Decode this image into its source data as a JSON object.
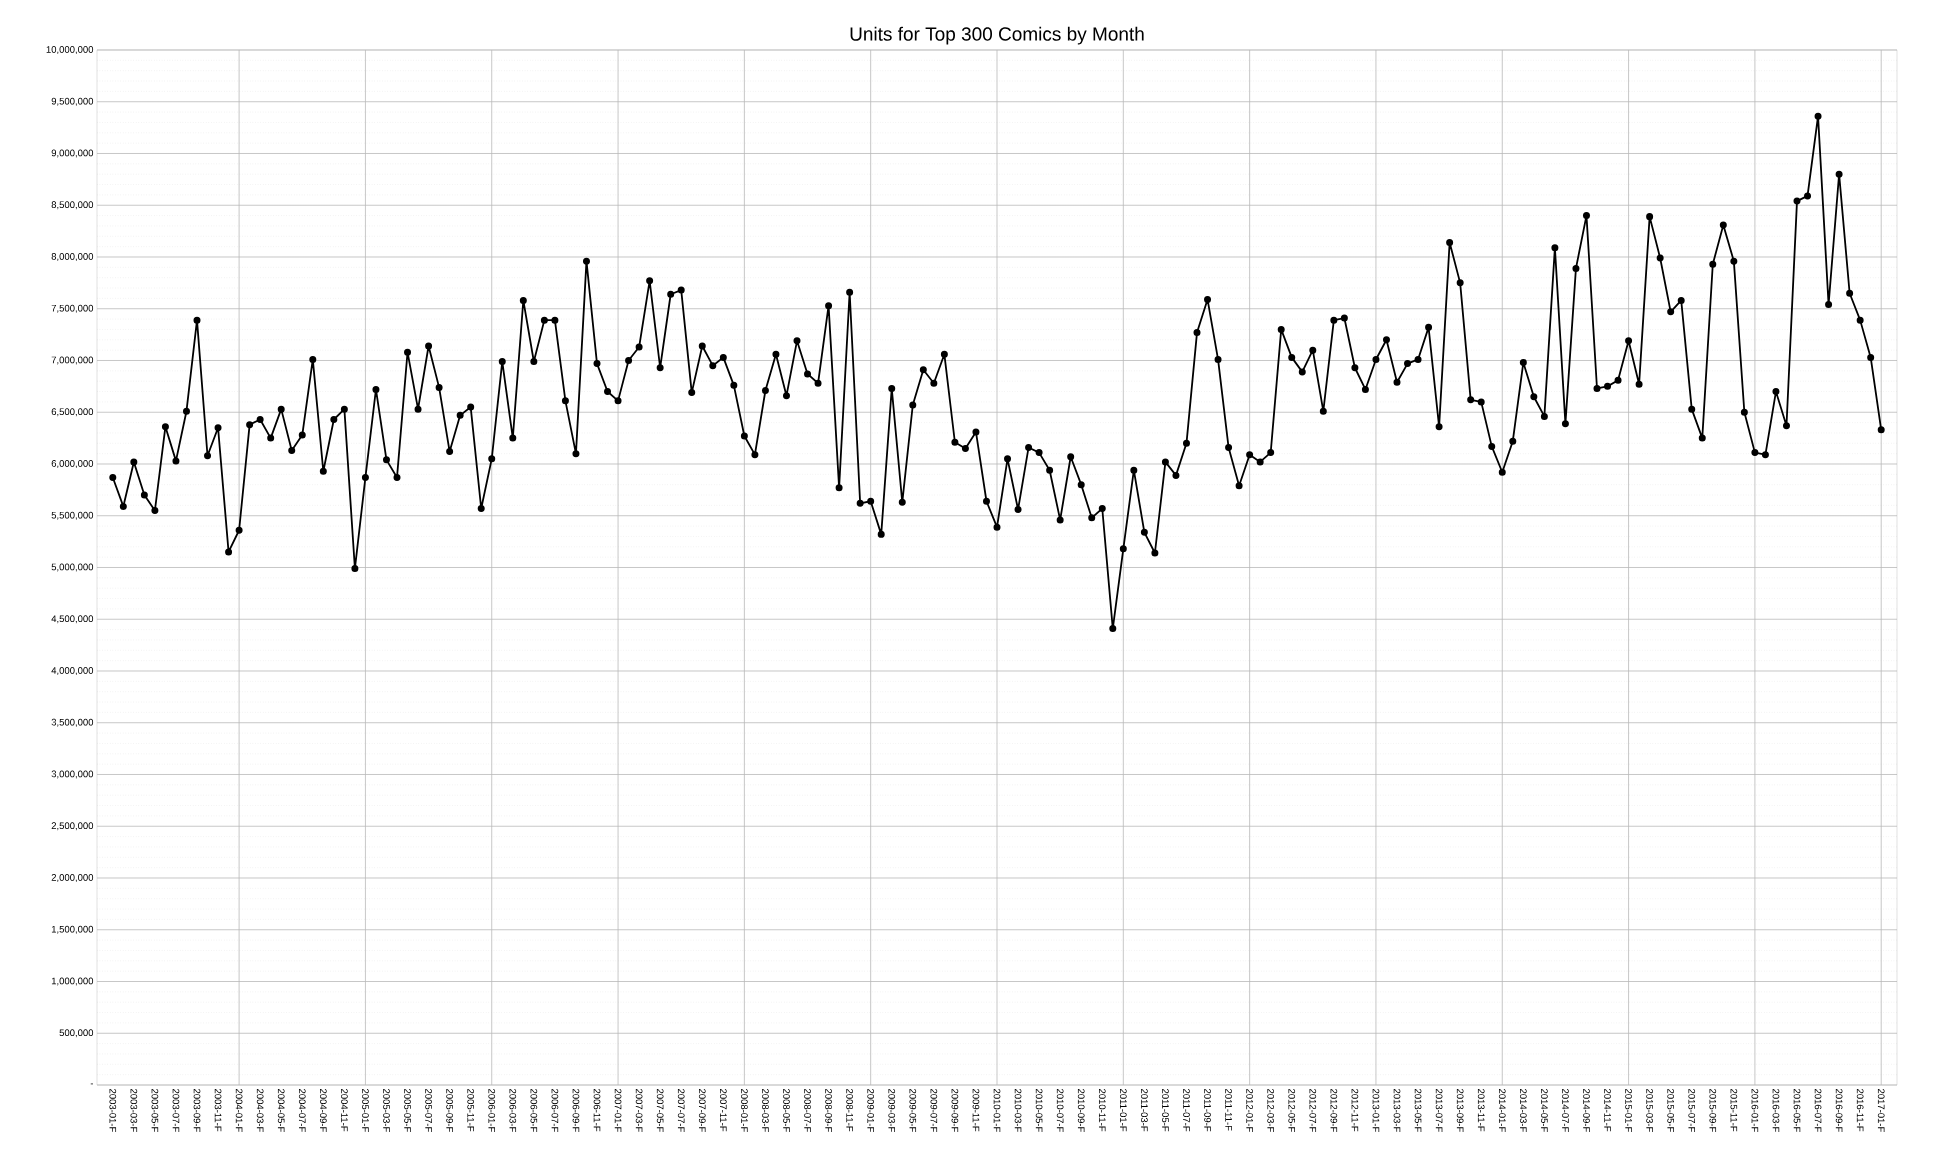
{
  "chart_data": {
    "type": "line",
    "title": "Units for Top 300 Comics by Month",
    "categories": [
      "2003-01-F",
      null,
      "2003-03-F",
      null,
      "2003-05-F",
      null,
      "2003-07-F",
      null,
      "2003-09-F",
      null,
      "2003-11-F",
      null,
      "2004-01-F",
      null,
      "2004-03-F",
      null,
      "2004-05-F",
      null,
      "2004-07-F",
      null,
      "2004-09-F",
      null,
      "2004-11-F",
      null,
      "2005-01-F",
      null,
      "2005-03-F",
      null,
      "2005-05-F",
      null,
      "2005-07-F",
      null,
      "2005-09-F",
      null,
      "2005-11-F",
      null,
      "2006-01-F",
      null,
      "2006-03-F",
      null,
      "2006-05-F",
      null,
      "2006-07-F",
      null,
      "2006-09-F",
      null,
      "2006-11-F",
      null,
      "2007-01-F",
      null,
      "2007-03-F",
      null,
      "2007-05-F",
      null,
      "2007-07-F",
      null,
      "2007-09-F",
      null,
      "2007-11-F",
      null,
      "2008-01-F",
      null,
      "2008-03-F",
      null,
      "2008-05-F",
      null,
      "2008-07-F",
      null,
      "2008-09-F",
      null,
      "2008-11-F",
      null,
      "2009-01-F",
      null,
      "2009-03-F",
      null,
      "2009-05-F",
      null,
      "2009-07-F",
      null,
      "2009-09-F",
      null,
      "2009-11-F",
      null,
      "2010-01-F",
      null,
      "2010-03-F",
      null,
      "2010-05-F",
      null,
      "2010-07-F",
      null,
      "2010-09-F",
      null,
      "2010-11-F",
      null,
      "2011-01-F",
      null,
      "2011-03-F",
      null,
      "2011-05-F",
      null,
      "2011-07-F",
      null,
      "2011-09-F",
      null,
      "2011-11-F",
      null,
      "2012-01-F",
      null,
      "2012-03-F",
      null,
      "2012-05-F",
      null,
      "2012-07-F",
      null,
      "2012-09-F",
      null,
      "2012-11-F",
      null,
      "2013-01-F",
      null,
      "2013-03-F",
      null,
      "2013-05-F",
      null,
      "2013-07-F",
      null,
      "2013-09-F",
      null,
      "2013-11-F",
      null,
      "2014-01-F",
      null,
      "2014-03-F",
      null,
      "2014-05-F",
      null,
      "2014-07-F",
      null,
      "2014-09-F",
      null,
      "2014-11-F",
      null,
      "2015-01-F",
      null,
      "2015-03-F",
      null,
      "2015-05-F",
      null,
      "2015-07-F",
      null,
      "2015-09-F",
      null,
      "2015-11-F",
      null,
      "2016-01-F",
      null,
      "2016-03-F",
      null,
      "2016-05-F",
      null,
      "2016-07-F",
      null,
      "2016-09-F",
      null,
      "2016-11-F",
      null,
      "2017-01-F"
    ],
    "values": [
      5870000,
      5590000,
      6020000,
      5700000,
      5550000,
      6360000,
      6030000,
      6510000,
      7390000,
      6080000,
      6350000,
      5150000,
      5360000,
      6380000,
      6430000,
      6250000,
      6530000,
      6130000,
      6280000,
      7010000,
      5930000,
      6430000,
      6530000,
      4990000,
      5870000,
      6720000,
      6040000,
      5870000,
      7080000,
      6530000,
      7140000,
      6740000,
      6120000,
      6470000,
      6550000,
      5570000,
      6050000,
      6990000,
      6250000,
      7580000,
      6990000,
      7390000,
      7390000,
      6610000,
      6100000,
      7960000,
      6970000,
      6700000,
      6610000,
      7000000,
      7130000,
      7770000,
      6930000,
      7640000,
      7680000,
      6690000,
      7140000,
      6950000,
      7030000,
      6760000,
      6270000,
      6090000,
      6710000,
      7060000,
      6660000,
      7190000,
      6870000,
      6780000,
      7530000,
      5770000,
      7660000,
      5620000,
      5640000,
      5320000,
      6730000,
      5630000,
      6570000,
      6910000,
      6780000,
      7060000,
      6210000,
      6150000,
      6310000,
      5640000,
      5390000,
      6050000,
      5560000,
      6160000,
      6110000,
      5940000,
      5460000,
      6070000,
      5800000,
      5480000,
      5570000,
      4410000,
      5180000,
      5940000,
      5340000,
      5140000,
      6020000,
      5890000,
      6200000,
      7270000,
      7590000,
      7010000,
      6160000,
      5790000,
      6090000,
      6020000,
      6110000,
      7300000,
      7030000,
      6890000,
      7100000,
      6510000,
      7390000,
      7410000,
      6930000,
      6720000,
      7010000,
      7200000,
      6790000,
      6970000,
      7010000,
      7320000,
      6360000,
      8140000,
      7750000,
      6620000,
      6600000,
      6170000,
      5920000,
      6220000,
      6980000,
      6650000,
      6460000,
      8090000,
      6390000,
      7890000,
      8400000,
      6730000,
      6750000,
      6810000,
      7190000,
      6770000,
      8390000,
      7990000,
      7470000,
      7580000,
      6530000,
      6250000,
      7930000,
      8310000,
      7960000,
      6500000,
      6110000,
      6090000,
      6700000,
      6370000,
      8540000,
      8590000,
      9360000,
      7540000,
      8800000,
      7650000,
      7390000,
      7030000,
      6330000
    ],
    "color": "#000000",
    "ylim": [
      0,
      10000000
    ],
    "yticks": [
      {
        "value": 0,
        "label": "-"
      },
      {
        "value": 500000,
        "label": "500,000"
      },
      {
        "value": 1000000,
        "label": "1,000,000"
      },
      {
        "value": 1500000,
        "label": "1,500,000"
      },
      {
        "value": 2000000,
        "label": "2,000,000"
      },
      {
        "value": 2500000,
        "label": "2,500,000"
      },
      {
        "value": 3000000,
        "label": "3,000,000"
      },
      {
        "value": 3500000,
        "label": "3,500,000"
      },
      {
        "value": 4000000,
        "label": "4,000,000"
      },
      {
        "value": 4500000,
        "label": "4,500,000"
      },
      {
        "value": 5000000,
        "label": "5,000,000"
      },
      {
        "value": 5500000,
        "label": "5,500,000"
      },
      {
        "value": 6000000,
        "label": "6,000,000"
      },
      {
        "value": 6500000,
        "label": "6,500,000"
      },
      {
        "value": 7000000,
        "label": "7,000,000"
      },
      {
        "value": 7500000,
        "label": "7,500,000"
      },
      {
        "value": 8000000,
        "label": "8,000,000"
      },
      {
        "value": 8500000,
        "label": "8,500,000"
      },
      {
        "value": 9000000,
        "label": "9,000,000"
      },
      {
        "value": 9500000,
        "label": "9,500,000"
      },
      {
        "value": 10000000,
        "label": "10,000,000"
      }
    ],
    "grid": true,
    "marker": "circle",
    "line_style": "solid"
  }
}
